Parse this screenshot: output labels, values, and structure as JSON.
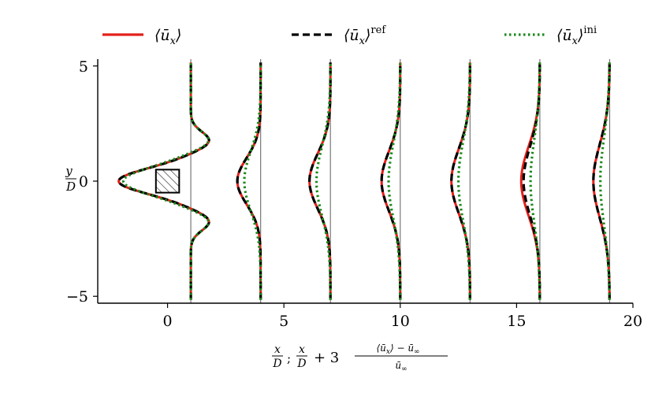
{
  "chart_data": {
    "type": "line",
    "title": "",
    "xlabel": "x/D; x/D + 3 (⟨ū_x⟩ − ū_∞)/ū_∞",
    "ylabel": "y/D",
    "xlim": [
      -3,
      20
    ],
    "ylim": [
      -5.3,
      5.3
    ],
    "xticks": [
      0,
      5,
      10,
      15,
      20
    ],
    "yticks": [
      -5,
      0,
      5
    ],
    "xtick_labels": [
      "0",
      "5",
      "10",
      "15",
      "20"
    ],
    "ytick_labels": [
      "−5",
      "0",
      "5"
    ],
    "grid": false,
    "legend_position": "top",
    "obstacle": {
      "shape": "square",
      "center": [
        0,
        0
      ],
      "side": 1,
      "hatched": true
    },
    "stations": [
      {
        "x": 1,
        "u_min": {
          "ours": -2.1,
          "ref": -2.1,
          "ini": -1.9
        },
        "width": {
          "ours": 0.55,
          "ref": 0.55,
          "ini": 0.6
        },
        "overshoot": 0.8
      },
      {
        "x": 4,
        "u_min": {
          "ours": 3.0,
          "ref": 3.0,
          "ini": 3.3
        },
        "width": {
          "ours": 1.0,
          "ref": 1.0,
          "ini": 1.3
        },
        "overshoot": 0
      },
      {
        "x": 7,
        "u_min": {
          "ours": 6.1,
          "ref": 6.1,
          "ini": 6.4
        },
        "width": {
          "ours": 1.2,
          "ref": 1.2,
          "ini": 1.5
        },
        "overshoot": 0
      },
      {
        "x": 10,
        "u_min": {
          "ours": 9.2,
          "ref": 9.2,
          "ini": 9.5
        },
        "width": {
          "ours": 1.3,
          "ref": 1.3,
          "ini": 1.6
        },
        "overshoot": 0
      },
      {
        "x": 13,
        "u_min": {
          "ours": 12.2,
          "ref": 12.2,
          "ini": 12.5
        },
        "width": {
          "ours": 1.4,
          "ref": 1.4,
          "ini": 1.7
        },
        "overshoot": 0
      },
      {
        "x": 16,
        "u_min": {
          "ours": 15.2,
          "ref": 15.3,
          "ini": 15.6
        },
        "width": {
          "ours": 1.5,
          "ref": 1.5,
          "ini": 1.8
        },
        "overshoot": 0
      },
      {
        "x": 19,
        "u_min": {
          "ours": 18.3,
          "ref": 18.3,
          "ini": 18.6
        },
        "width": {
          "ours": 1.6,
          "ref": 1.6,
          "ini": 1.9
        },
        "overshoot": 0
      }
    ],
    "series": [
      {
        "name": "⟨ū_x⟩",
        "key": "ours",
        "color": "#e3201a",
        "style": "solid"
      },
      {
        "name": "⟨ū_x⟩^ref",
        "key": "ref",
        "color": "#000000",
        "style": "dashed"
      },
      {
        "name": "⟨ū_x⟩^ini",
        "key": "ini",
        "color": "#1a8a1a",
        "style": "dotted"
      }
    ]
  }
}
